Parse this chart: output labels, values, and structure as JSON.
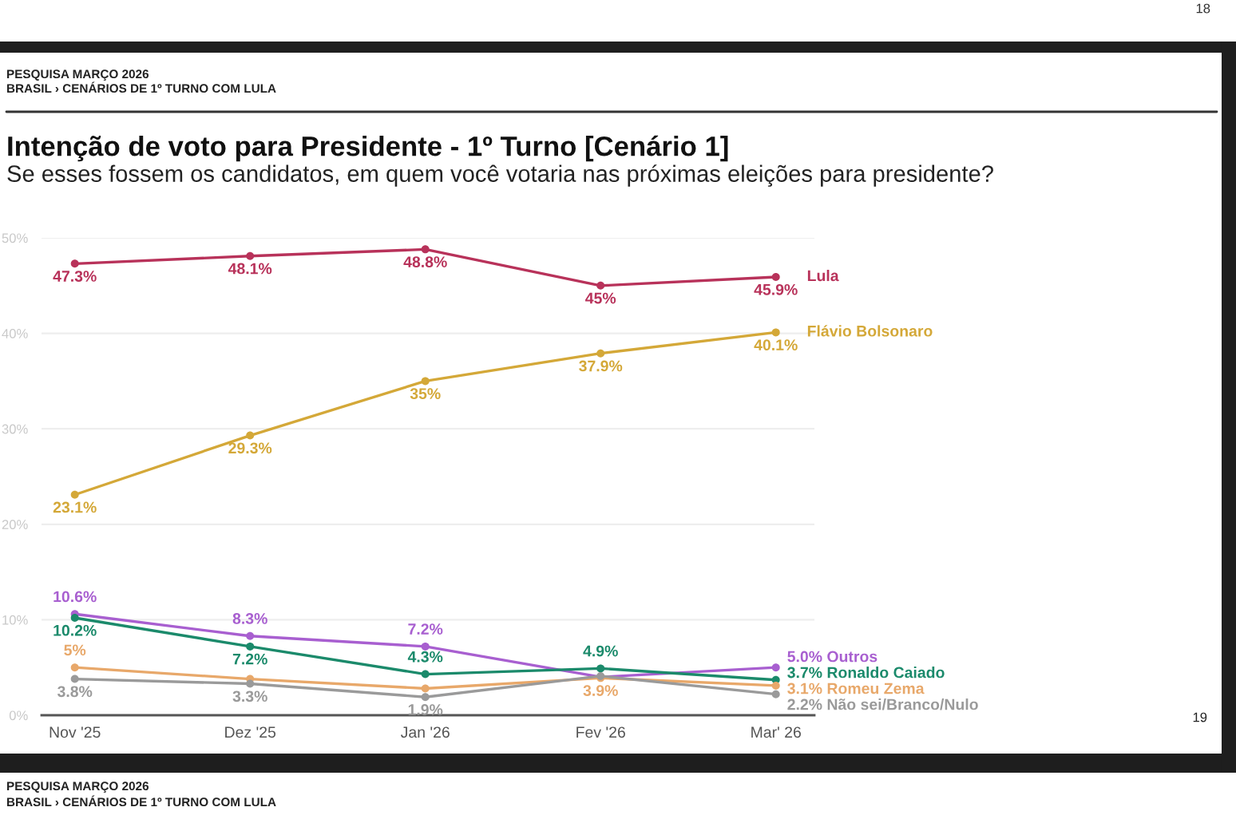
{
  "chart_data": {
    "type": "line",
    "title": "Intenção de voto para Presidente - 1º Turno [Cenário 1]",
    "subtitle": "Se esses fossem os candidatos, em quem você votaria nas próximas eleições para presidente?",
    "annotations": [
      "PESQUISA MARÇO 2026",
      "BRASIL › CENÁRIOS DE 1º TURNO COM LULA",
      "18",
      "19",
      "PESQUISA MARÇO 2026",
      "BRASIL › CENÁRIOS DE 1º TURNO COM LULA"
    ],
    "categories": [
      "Nov '25",
      "Dez '25",
      "Jan '26",
      "Fev '26",
      "Mar' 26"
    ],
    "series": [
      {
        "name": "Lula",
        "color": "#b8325a",
        "values": [
          47.3,
          48.1,
          48.8,
          45,
          45.9
        ],
        "value_labels": [
          "47.3%",
          "48.1%",
          "48.8%",
          "45%",
          "45.9%"
        ]
      },
      {
        "name": "Flávio Bolsonaro",
        "color": "#d4a838",
        "values": [
          23.1,
          29.3,
          35,
          37.9,
          40.1
        ],
        "value_labels": [
          "23.1%",
          "29.3%",
          "35%",
          "37.9%",
          "40.1%"
        ]
      },
      {
        "name": "Outros",
        "color": "#a85fd0",
        "values": [
          10.6,
          8.3,
          7.2,
          4.0,
          5.0
        ],
        "value_labels": [
          "10.6%",
          "8.3%",
          "7.2%",
          null,
          "5.0%"
        ]
      },
      {
        "name": "Ronaldo Caiado",
        "color": "#1b8a6b",
        "values": [
          10.2,
          7.2,
          4.3,
          4.9,
          3.7
        ],
        "value_labels": [
          "10.2%",
          "7.2%",
          "4.3%",
          "4.9%",
          "3.7%"
        ]
      },
      {
        "name": "Romeu Zema",
        "color": "#e8a86a",
        "values": [
          5,
          3.8,
          2.8,
          3.9,
          3.1
        ],
        "value_labels": [
          "5%",
          null,
          null,
          "3.9%",
          "3.1%"
        ]
      },
      {
        "name": "Não sei/Branco/Nulo",
        "color": "#9a9a9a",
        "values": [
          3.8,
          3.3,
          1.9,
          4.1,
          2.2
        ],
        "value_labels": [
          "3.8%",
          "3.3%",
          "1.9%",
          null,
          "2.2%"
        ]
      }
    ],
    "ylim": [
      0,
      50
    ],
    "yticks": [
      {
        "value": 0,
        "label": "0%"
      },
      {
        "value": 10,
        "label": "10%"
      },
      {
        "value": 20,
        "label": "20%"
      },
      {
        "value": 30,
        "label": "30%"
      },
      {
        "value": 40,
        "label": "40%"
      },
      {
        "value": 50,
        "label": "50%"
      }
    ],
    "grid": "y",
    "marker": "circle",
    "line_style": "solid",
    "legend": false
  }
}
